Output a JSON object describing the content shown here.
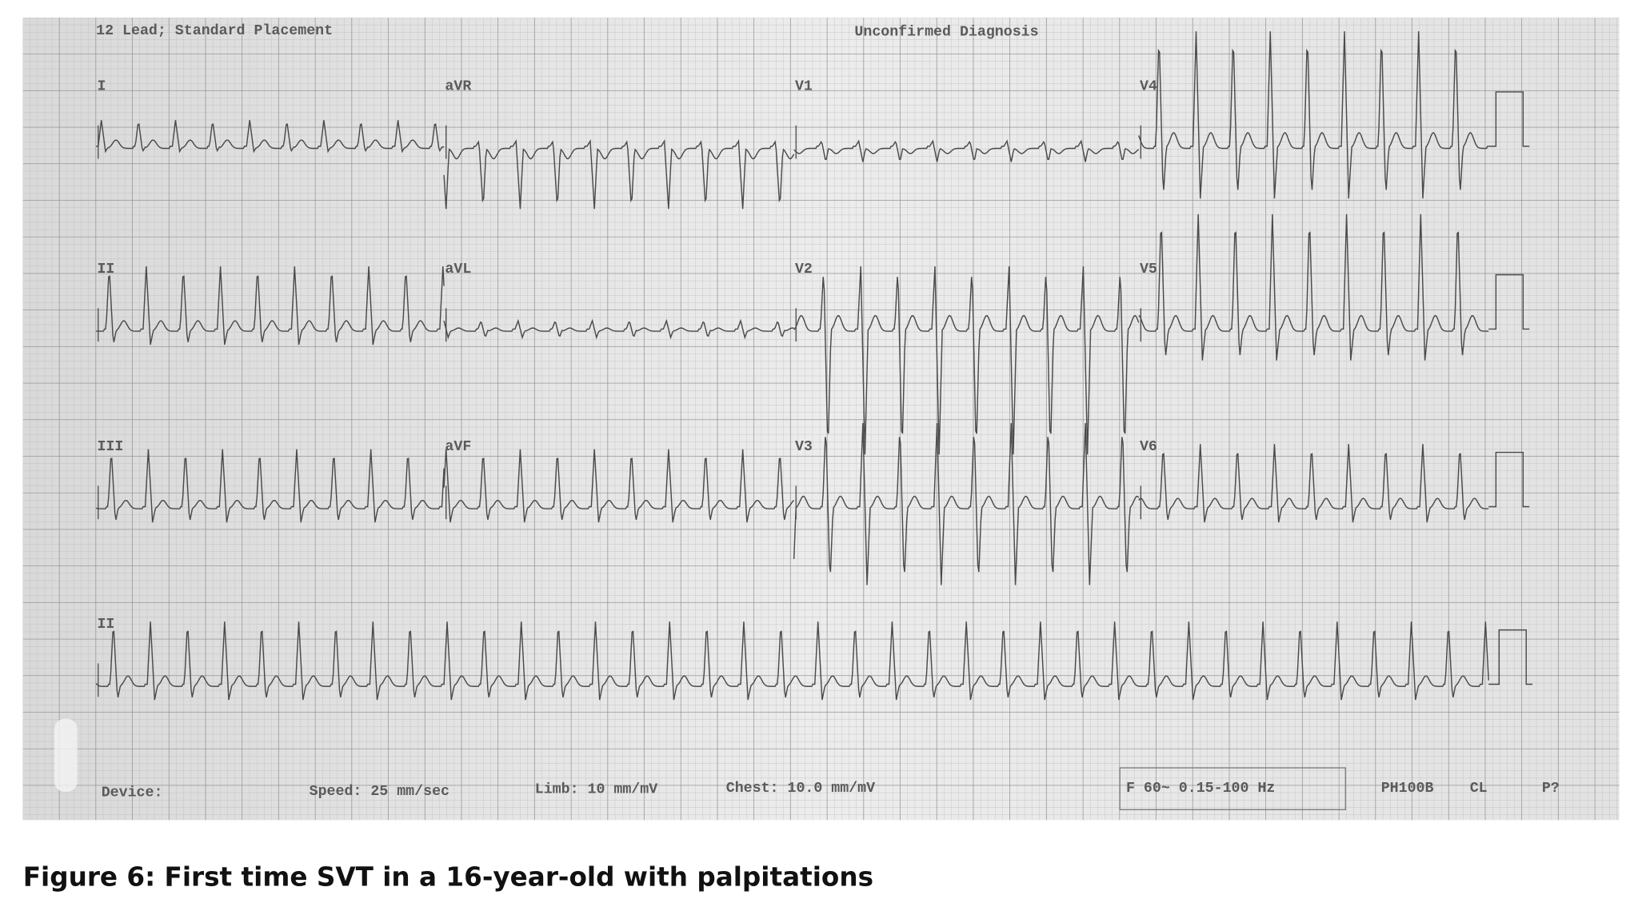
{
  "header": {
    "left": "12 Lead; Standard Placement",
    "center": "Unconfirmed Diagnosis"
  },
  "leads": [
    "I",
    "aVR",
    "V1",
    "V4",
    "II",
    "aVL",
    "V2",
    "V5",
    "III",
    "aVF",
    "V3",
    "V6",
    "II"
  ],
  "footer": {
    "device": "Device:",
    "speed": "Speed: 25 mm/sec",
    "limb": "Limb: 10 mm/mV",
    "chest": "Chest: 10.0 mm/mV",
    "filter": "F 60~ 0.15-100 Hz",
    "model": "PH100B",
    "cl": "CL",
    "p": "P?"
  },
  "caption": "Figure 6: First time SVT in a 16-year-old with palpitations"
}
